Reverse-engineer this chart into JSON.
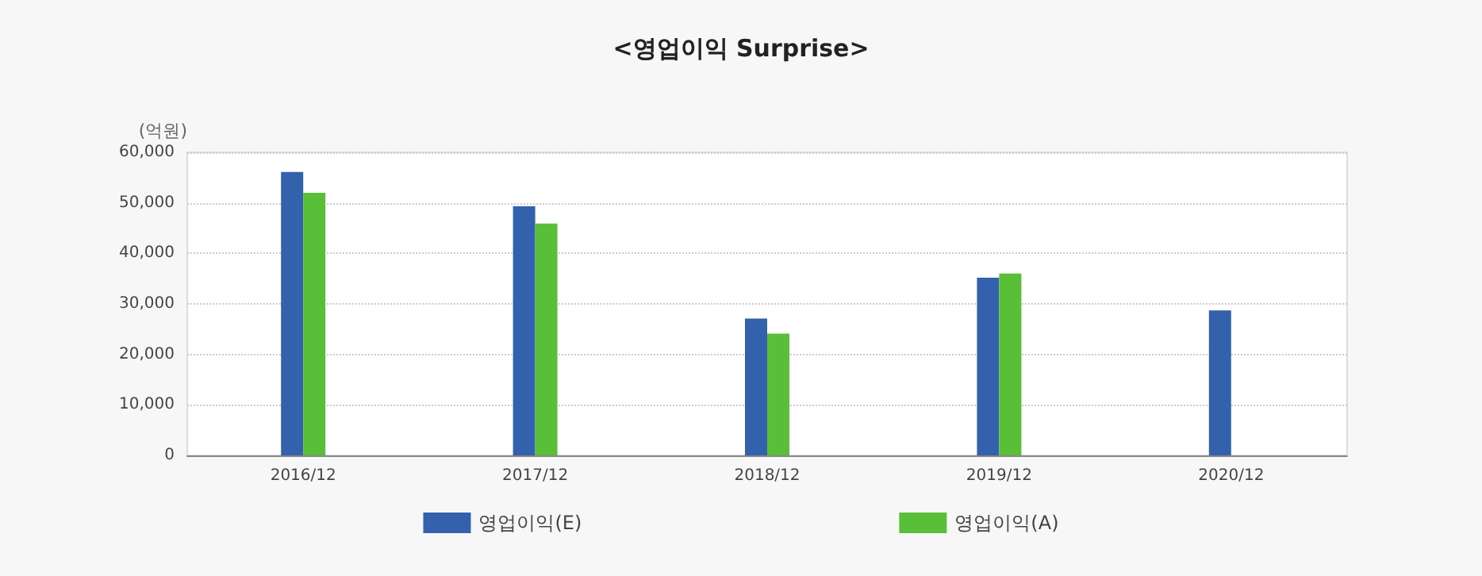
{
  "chart_data": {
    "type": "bar",
    "title": "<영업이익 Surprise>",
    "ylabel": "(억원)",
    "categories": [
      "2016/12",
      "2017/12",
      "2018/12",
      "2019/12",
      "2020/12"
    ],
    "series": [
      {
        "name": "영업이익(E)",
        "color": "#3461ab",
        "values": [
          56100,
          49300,
          27100,
          35200,
          28700
        ]
      },
      {
        "name": "영업이익(A)",
        "color": "#5abf38",
        "values": [
          52000,
          45900,
          24100,
          36000,
          null
        ]
      }
    ],
    "ylim": [
      0,
      60000
    ],
    "yticks": [
      0,
      {
        "value": 10000,
        "label": "10,000"
      },
      {
        "value": 20000,
        "label": "20,000"
      },
      {
        "value": 30000,
        "label": "30,000"
      },
      {
        "value": 40000,
        "label": "40,000"
      },
      {
        "value": 50000,
        "label": "50,000"
      },
      {
        "value": 60000,
        "label": "60,000"
      }
    ],
    "grid": "y",
    "legend": "bottom"
  }
}
